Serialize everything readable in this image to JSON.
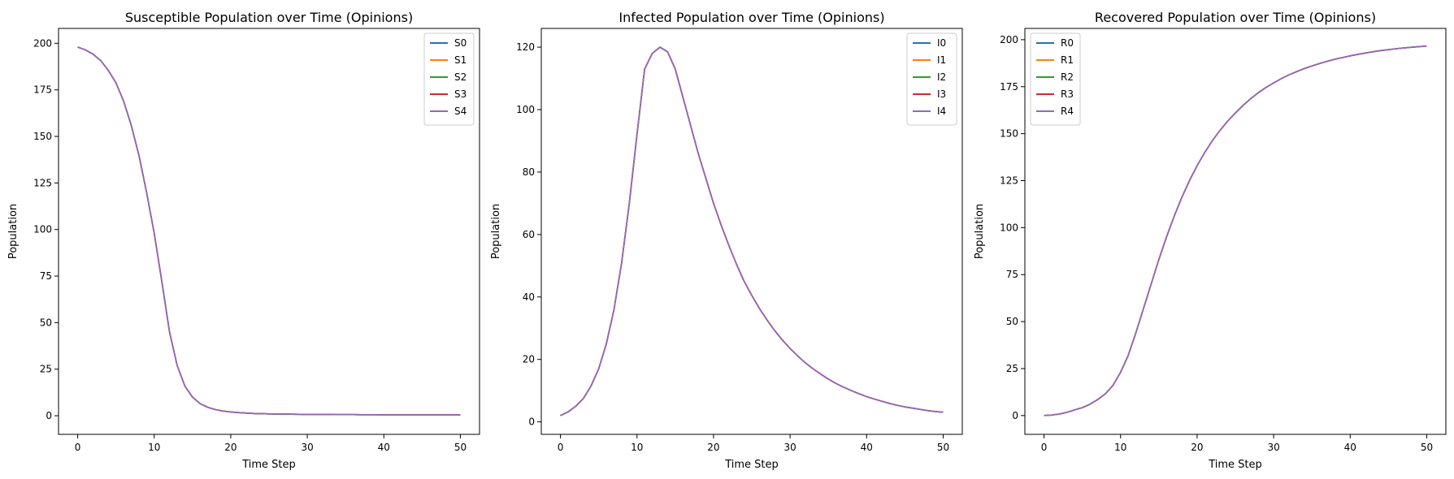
{
  "chart_data": [
    {
      "type": "line",
      "title": "Susceptible Population over Time (Opinions)",
      "xlabel": "Time Step",
      "ylabel": "Population",
      "xlim": [
        -2.5,
        52.5
      ],
      "ylim": [
        -10,
        208
      ],
      "xticks": [
        0,
        10,
        20,
        30,
        40,
        50
      ],
      "yticks": [
        0,
        25,
        50,
        75,
        100,
        125,
        150,
        175,
        200
      ],
      "legend": "top-right",
      "grid": false,
      "x": [
        0,
        1,
        2,
        3,
        4,
        5,
        6,
        7,
        8,
        9,
        10,
        11,
        12,
        13,
        14,
        15,
        16,
        17,
        18,
        19,
        20,
        21,
        22,
        23,
        24,
        25,
        26,
        27,
        28,
        29,
        30,
        31,
        32,
        33,
        34,
        35,
        36,
        37,
        38,
        39,
        40,
        41,
        42,
        43,
        44,
        45,
        46,
        47,
        48,
        49,
        50
      ],
      "series": [
        {
          "name": "S0",
          "color": "#1f77b4",
          "values": [
            198,
            196.5,
            194.2,
            190.8,
            185.5,
            178.8,
            169,
            156,
            140,
            120,
            98,
            72,
            45,
            27,
            16,
            10,
            6.5,
            4.5,
            3.3,
            2.5,
            2,
            1.7,
            1.4,
            1.2,
            1.1,
            1,
            0.9,
            0.85,
            0.8,
            0.75,
            0.7,
            0.7,
            0.65,
            0.65,
            0.6,
            0.6,
            0.6,
            0.55,
            0.55,
            0.55,
            0.5,
            0.5,
            0.5,
            0.5,
            0.5,
            0.5,
            0.5,
            0.5,
            0.5,
            0.5,
            0.5
          ]
        },
        {
          "name": "S1",
          "color": "#ff7f0e",
          "values": [
            198,
            196.5,
            194.2,
            190.8,
            185.5,
            178.8,
            169,
            156,
            140,
            120,
            98,
            72,
            45,
            27,
            16,
            10,
            6.5,
            4.5,
            3.3,
            2.5,
            2,
            1.7,
            1.4,
            1.2,
            1.1,
            1,
            0.9,
            0.85,
            0.8,
            0.75,
            0.7,
            0.7,
            0.65,
            0.65,
            0.6,
            0.6,
            0.6,
            0.55,
            0.55,
            0.55,
            0.5,
            0.5,
            0.5,
            0.5,
            0.5,
            0.5,
            0.5,
            0.5,
            0.5,
            0.5,
            0.5
          ]
        },
        {
          "name": "S2",
          "color": "#2ca02c",
          "values": [
            198,
            196.5,
            194.2,
            190.8,
            185.5,
            178.8,
            169,
            156,
            140,
            120,
            98,
            72,
            45,
            27,
            16,
            10,
            6.5,
            4.5,
            3.3,
            2.5,
            2,
            1.7,
            1.4,
            1.2,
            1.1,
            1,
            0.9,
            0.85,
            0.8,
            0.75,
            0.7,
            0.7,
            0.65,
            0.65,
            0.6,
            0.6,
            0.6,
            0.55,
            0.55,
            0.55,
            0.5,
            0.5,
            0.5,
            0.5,
            0.5,
            0.5,
            0.5,
            0.5,
            0.5,
            0.5,
            0.5
          ]
        },
        {
          "name": "S3",
          "color": "#d62728",
          "values": [
            198,
            196.5,
            194.2,
            190.8,
            185.5,
            178.8,
            169,
            156,
            140,
            120,
            98,
            72,
            45,
            27,
            16,
            10,
            6.5,
            4.5,
            3.3,
            2.5,
            2,
            1.7,
            1.4,
            1.2,
            1.1,
            1,
            0.9,
            0.85,
            0.8,
            0.75,
            0.7,
            0.7,
            0.65,
            0.65,
            0.6,
            0.6,
            0.6,
            0.55,
            0.55,
            0.55,
            0.5,
            0.5,
            0.5,
            0.5,
            0.5,
            0.5,
            0.5,
            0.5,
            0.5,
            0.5,
            0.5
          ]
        },
        {
          "name": "S4",
          "color": "#9467bd",
          "values": [
            198,
            196.5,
            194.2,
            190.8,
            185.5,
            178.8,
            169,
            156,
            140,
            120,
            98,
            72,
            45,
            27,
            16,
            10,
            6.5,
            4.5,
            3.3,
            2.5,
            2,
            1.7,
            1.4,
            1.2,
            1.1,
            1,
            0.9,
            0.85,
            0.8,
            0.75,
            0.7,
            0.7,
            0.65,
            0.65,
            0.6,
            0.6,
            0.6,
            0.55,
            0.55,
            0.55,
            0.5,
            0.5,
            0.5,
            0.5,
            0.5,
            0.5,
            0.5,
            0.5,
            0.5,
            0.5,
            0.5
          ]
        }
      ]
    },
    {
      "type": "line",
      "title": "Infected Population over Time (Opinions)",
      "xlabel": "Time Step",
      "ylabel": "Population",
      "xlim": [
        -2.5,
        52.5
      ],
      "ylim": [
        -4,
        126
      ],
      "xticks": [
        0,
        10,
        20,
        30,
        40,
        50
      ],
      "yticks": [
        0,
        20,
        40,
        60,
        80,
        100,
        120
      ],
      "legend": "top-right",
      "grid": false,
      "x": [
        0,
        1,
        2,
        3,
        4,
        5,
        6,
        7,
        8,
        9,
        10,
        11,
        12,
        13,
        14,
        15,
        16,
        17,
        18,
        19,
        20,
        21,
        22,
        23,
        24,
        25,
        26,
        27,
        28,
        29,
        30,
        31,
        32,
        33,
        34,
        35,
        36,
        37,
        38,
        39,
        40,
        41,
        42,
        43,
        44,
        45,
        46,
        47,
        48,
        49,
        50
      ],
      "series": [
        {
          "name": "I0",
          "color": "#1f77b4",
          "values": [
            2,
            3.2,
            5,
            7.5,
            11.5,
            17,
            25,
            36,
            51,
            70,
            92,
            113,
            118,
            120,
            118.5,
            113,
            104,
            95,
            86,
            78,
            70,
            63,
            56.5,
            50.5,
            45,
            40.5,
            36.3,
            32.6,
            29.2,
            26.2,
            23.5,
            21.1,
            18.9,
            17,
            15.3,
            13.7,
            12.3,
            11.1,
            10,
            9,
            8.1,
            7.3,
            6.6,
            5.9,
            5.3,
            4.8,
            4.4,
            4,
            3.6,
            3.3,
            3.1
          ]
        },
        {
          "name": "I1",
          "color": "#ff7f0e",
          "values": [
            2,
            3.2,
            5,
            7.5,
            11.5,
            17,
            25,
            36,
            51,
            70,
            92,
            113,
            118,
            120,
            118.5,
            113,
            104,
            95,
            86,
            78,
            70,
            63,
            56.5,
            50.5,
            45,
            40.5,
            36.3,
            32.6,
            29.2,
            26.2,
            23.5,
            21.1,
            18.9,
            17,
            15.3,
            13.7,
            12.3,
            11.1,
            10,
            9,
            8.1,
            7.3,
            6.6,
            5.9,
            5.3,
            4.8,
            4.4,
            4,
            3.6,
            3.3,
            3.1
          ]
        },
        {
          "name": "I2",
          "color": "#2ca02c",
          "values": [
            2,
            3.2,
            5,
            7.5,
            11.5,
            17,
            25,
            36,
            51,
            70,
            92,
            113,
            118,
            120,
            118.5,
            113,
            104,
            95,
            86,
            78,
            70,
            63,
            56.5,
            50.5,
            45,
            40.5,
            36.3,
            32.6,
            29.2,
            26.2,
            23.5,
            21.1,
            18.9,
            17,
            15.3,
            13.7,
            12.3,
            11.1,
            10,
            9,
            8.1,
            7.3,
            6.6,
            5.9,
            5.3,
            4.8,
            4.4,
            4,
            3.6,
            3.3,
            3.1
          ]
        },
        {
          "name": "I3",
          "color": "#d62728",
          "values": [
            2,
            3.2,
            5,
            7.5,
            11.5,
            17,
            25,
            36,
            51,
            70,
            92,
            113,
            118,
            120,
            118.5,
            113,
            104,
            95,
            86,
            78,
            70,
            63,
            56.5,
            50.5,
            45,
            40.5,
            36.3,
            32.6,
            29.2,
            26.2,
            23.5,
            21.1,
            18.9,
            17,
            15.3,
            13.7,
            12.3,
            11.1,
            10,
            9,
            8.1,
            7.3,
            6.6,
            5.9,
            5.3,
            4.8,
            4.4,
            4,
            3.6,
            3.3,
            3.1
          ]
        },
        {
          "name": "I4",
          "color": "#9467bd",
          "values": [
            2,
            3.2,
            5,
            7.5,
            11.5,
            17,
            25,
            36,
            51,
            70,
            92,
            113,
            118,
            120,
            118.5,
            113,
            104,
            95,
            86,
            78,
            70,
            63,
            56.5,
            50.5,
            45,
            40.5,
            36.3,
            32.6,
            29.2,
            26.2,
            23.5,
            21.1,
            18.9,
            17,
            15.3,
            13.7,
            12.3,
            11.1,
            10,
            9,
            8.1,
            7.3,
            6.6,
            5.9,
            5.3,
            4.8,
            4.4,
            4,
            3.6,
            3.3,
            3.1
          ]
        }
      ]
    },
    {
      "type": "line",
      "title": "Recovered Population over Time (Opinions)",
      "xlabel": "Time Step",
      "ylabel": "Population",
      "xlim": [
        -2.5,
        52.5
      ],
      "ylim": [
        -10,
        206
      ],
      "xticks": [
        0,
        10,
        20,
        30,
        40,
        50
      ],
      "yticks": [
        0,
        25,
        50,
        75,
        100,
        125,
        150,
        175,
        200
      ],
      "legend": "top-left",
      "grid": false,
      "x": [
        0,
        1,
        2,
        3,
        4,
        5,
        6,
        7,
        8,
        9,
        10,
        11,
        12,
        13,
        14,
        15,
        16,
        17,
        18,
        19,
        20,
        21,
        22,
        23,
        24,
        25,
        26,
        27,
        28,
        29,
        30,
        31,
        32,
        33,
        34,
        35,
        36,
        37,
        38,
        39,
        40,
        41,
        42,
        43,
        44,
        45,
        46,
        47,
        48,
        49,
        50
      ],
      "series": [
        {
          "name": "R0",
          "color": "#1f77b4",
          "values": [
            0,
            0.3,
            0.8,
            1.7,
            3,
            4.2,
            6,
            8.5,
            11.5,
            16,
            23,
            32,
            44,
            57,
            70,
            83,
            95,
            106,
            116,
            125,
            133,
            140,
            146.3,
            151.8,
            156.7,
            161,
            165,
            168.6,
            171.8,
            174.6,
            177,
            179.3,
            181.3,
            183,
            184.6,
            186,
            187.3,
            188.5,
            189.6,
            190.5,
            191.4,
            192.2,
            192.9,
            193.6,
            194.2,
            194.7,
            195.2,
            195.6,
            196,
            196.3,
            196.6
          ]
        },
        {
          "name": "R1",
          "color": "#ff7f0e",
          "values": [
            0,
            0.3,
            0.8,
            1.7,
            3,
            4.2,
            6,
            8.5,
            11.5,
            16,
            23,
            32,
            44,
            57,
            70,
            83,
            95,
            106,
            116,
            125,
            133,
            140,
            146.3,
            151.8,
            156.7,
            161,
            165,
            168.6,
            171.8,
            174.6,
            177,
            179.3,
            181.3,
            183,
            184.6,
            186,
            187.3,
            188.5,
            189.6,
            190.5,
            191.4,
            192.2,
            192.9,
            193.6,
            194.2,
            194.7,
            195.2,
            195.6,
            196,
            196.3,
            196.6
          ]
        },
        {
          "name": "R2",
          "color": "#2ca02c",
          "values": [
            0,
            0.3,
            0.8,
            1.7,
            3,
            4.2,
            6,
            8.5,
            11.5,
            16,
            23,
            32,
            44,
            57,
            70,
            83,
            95,
            106,
            116,
            125,
            133,
            140,
            146.3,
            151.8,
            156.7,
            161,
            165,
            168.6,
            171.8,
            174.6,
            177,
            179.3,
            181.3,
            183,
            184.6,
            186,
            187.3,
            188.5,
            189.6,
            190.5,
            191.4,
            192.2,
            192.9,
            193.6,
            194.2,
            194.7,
            195.2,
            195.6,
            196,
            196.3,
            196.6
          ]
        },
        {
          "name": "R3",
          "color": "#d62728",
          "values": [
            0,
            0.3,
            0.8,
            1.7,
            3,
            4.2,
            6,
            8.5,
            11.5,
            16,
            23,
            32,
            44,
            57,
            70,
            83,
            95,
            106,
            116,
            125,
            133,
            140,
            146.3,
            151.8,
            156.7,
            161,
            165,
            168.6,
            171.8,
            174.6,
            177,
            179.3,
            181.3,
            183,
            184.6,
            186,
            187.3,
            188.5,
            189.6,
            190.5,
            191.4,
            192.2,
            192.9,
            193.6,
            194.2,
            194.7,
            195.2,
            195.6,
            196,
            196.3,
            196.6
          ]
        },
        {
          "name": "R4",
          "color": "#9467bd",
          "values": [
            0,
            0.3,
            0.8,
            1.7,
            3,
            4.2,
            6,
            8.5,
            11.5,
            16,
            23,
            32,
            44,
            57,
            70,
            83,
            95,
            106,
            116,
            125,
            133,
            140,
            146.3,
            151.8,
            156.7,
            161,
            165,
            168.6,
            171.8,
            174.6,
            177,
            179.3,
            181.3,
            183,
            184.6,
            186,
            187.3,
            188.5,
            189.6,
            190.5,
            191.4,
            192.2,
            192.9,
            193.6,
            194.2,
            194.7,
            195.2,
            195.6,
            196,
            196.3,
            196.6
          ]
        }
      ]
    }
  ]
}
